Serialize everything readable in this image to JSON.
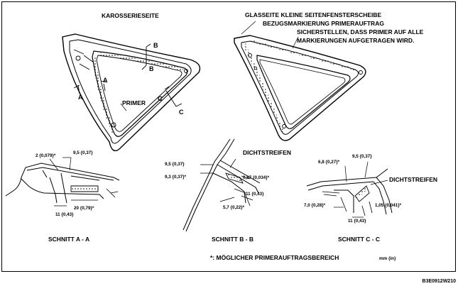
{
  "header": {
    "left_title": "KAROSSERIESEITE",
    "right_title_1": "GLASSEITE KLEINE SEITENFENSTERSCHEIBE",
    "right_title_2": "BEZUGSMARKIERUNG PRIMERAUFTRAG",
    "right_title_3": "SICHERSTELLEN, DASS PRIMER AUF ALLE",
    "right_title_4": "MARKIERUNGEN AUFGETRAGEN WIRD."
  },
  "body_side": {
    "label_a1": "A",
    "label_a2": "A",
    "label_b1": "B",
    "label_b2": "B",
    "label_c1": "C",
    "label_c2": "C",
    "primer": "PRIMER"
  },
  "section_aa": {
    "dim1": "2 {0,079}*",
    "dim2": "9,5 {0,37}",
    "dim3": "20 {0,79}*",
    "dim4": "11 {0,43}",
    "title": "SCHNITT A - A"
  },
  "section_bb": {
    "seal": "DICHTSTREIFEN",
    "dim1": "9,5 {0,37}",
    "dim2": "9,3 {0,37}*",
    "dim3": "0,87 {0,034}*",
    "dim4": "11 {0,43}",
    "dim5": "5,7 {0,22}*",
    "title": "SCHNITT  B - B"
  },
  "section_cc": {
    "dim1": "6,8 {0,27}*",
    "dim2": "9,5 {0,37}",
    "seal": "DICHTSTREIFEN",
    "dim3": "7,0 {0,28}*",
    "dim4": "1,05 {0,041}*",
    "dim5": "11 {0,43}",
    "title": "SCHNITT C - C"
  },
  "footer": {
    "note": "*: MÖGLICHER PRIMERAUFTRAGSBEREICH",
    "units": "mm {in}",
    "code": "B3E0912W210"
  }
}
